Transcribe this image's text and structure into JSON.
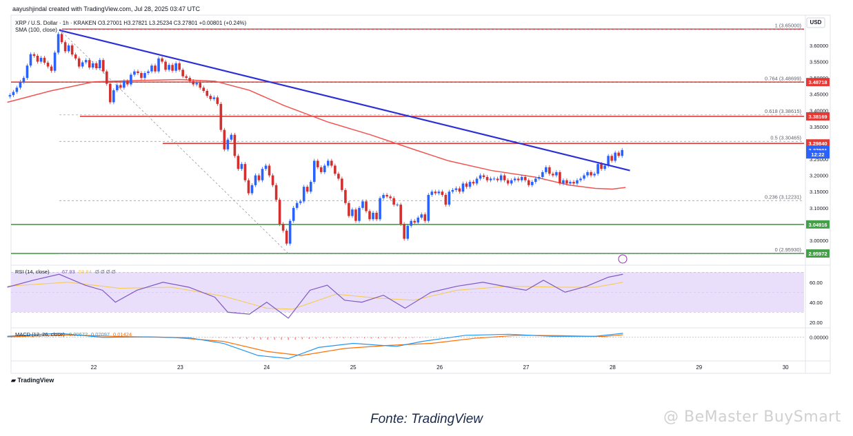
{
  "credit": "aayushjindal created with TradingView.com, Jul 28, 2025 03:47 UTC",
  "currency_button": "USD",
  "logo_text": "TradingView",
  "caption": "Fonte: TradingView",
  "watermark": "@ BeMaster BuySmart",
  "colors": {
    "up": "#2962ff",
    "down": "#d32f2f",
    "sma": "#f05350",
    "trendline": "#2a2fd6",
    "level_red": "#e53935",
    "level_green": "#43a047",
    "rsi_band": "#e9dffb",
    "macd_fast": "#2196f3",
    "macd_slow": "#ff6d00"
  },
  "chart_data": {
    "type": "candlestick",
    "symbol_line": "XRP / U.S. Dollar · 1h · KRAKEN",
    "ohlc_line": "O3.27001  H3.27821  L3.25234  C3.27801  +0.00801 (+0.24%)",
    "sma_label": "SMA (100, close)",
    "ylim": [
      2.93,
      3.655
    ],
    "x_days": [
      "22",
      "23",
      "24",
      "25",
      "26",
      "27",
      "28",
      "29",
      "30"
    ],
    "y_ticks": [
      "3.60000",
      "3.55000",
      "3.50000",
      "3.45000",
      "3.40000",
      "3.35000",
      "3.30000",
      "3.25000",
      "3.20000",
      "3.15000",
      "3.10000",
      "3.05000",
      "3.00000"
    ],
    "y_tick_values": [
      3.6,
      3.55,
      3.5,
      3.45,
      3.4,
      3.35,
      3.3,
      3.25,
      3.2,
      3.15,
      3.1,
      3.05,
      3.0
    ],
    "price_tags": [
      {
        "label": "3.48718",
        "value": 3.48718,
        "color": "red"
      },
      {
        "label": "3.38169",
        "value": 3.38169,
        "color": "red"
      },
      {
        "label": "3.29840",
        "value": 3.2984,
        "color": "red"
      },
      {
        "label": "3.27801",
        "value": 3.27801,
        "color": "blue"
      },
      {
        "label": "12:22",
        "value": 3.2645,
        "color": "blue"
      },
      {
        "label": "3.04916",
        "value": 3.04916,
        "color": "green"
      },
      {
        "label": "2.95972",
        "value": 2.95972,
        "color": "green"
      }
    ],
    "fib_levels": [
      {
        "label": "1 (3.65000)",
        "value": 3.65
      },
      {
        "label": "0.764 (3.48699)",
        "value": 3.48699
      },
      {
        "label": "0.618 (3.38615)",
        "value": 3.38615
      },
      {
        "label": "0.5 (3.30465)",
        "value": 3.30465
      },
      {
        "label": "0.236 (3.12231)",
        "value": 3.12231
      },
      {
        "label": "0 (2.95930)",
        "value": 2.9593
      }
    ],
    "horizontal_levels": [
      {
        "value": 3.65,
        "color": "red"
      },
      {
        "value": 3.48718,
        "color": "red"
      },
      {
        "value": 3.38169,
        "color": "red"
      },
      {
        "value": 3.2984,
        "color": "red"
      },
      {
        "value": 3.04916,
        "color": "green"
      },
      {
        "value": 2.95972,
        "color": "green"
      }
    ],
    "trendline": {
      "from": {
        "day": 21.6,
        "price": 3.647
      },
      "to": {
        "day": 28.2,
        "price": 3.215
      }
    },
    "fib_diagonal": {
      "from": {
        "day": 21.6,
        "price": 3.65
      },
      "to": {
        "day": 24.25,
        "price": 2.9593
      }
    },
    "candles": [
      {
        "d": 21.03,
        "c": 3.447
      },
      {
        "d": 21.07,
        "c": 3.457
      },
      {
        "d": 21.11,
        "c": 3.47
      },
      {
        "d": 21.15,
        "c": 3.488
      },
      {
        "d": 21.19,
        "c": 3.5
      },
      {
        "d": 21.23,
        "c": 3.538
      },
      {
        "d": 21.27,
        "c": 3.573
      },
      {
        "d": 21.31,
        "c": 3.568
      },
      {
        "d": 21.35,
        "c": 3.55
      },
      {
        "d": 21.39,
        "c": 3.562
      },
      {
        "d": 21.43,
        "c": 3.547
      },
      {
        "d": 21.47,
        "c": 3.535
      },
      {
        "d": 21.51,
        "c": 3.522
      },
      {
        "d": 21.55,
        "c": 3.578
      },
      {
        "d": 21.59,
        "c": 3.635
      },
      {
        "d": 21.63,
        "c": 3.61
      },
      {
        "d": 21.67,
        "c": 3.582
      },
      {
        "d": 21.71,
        "c": 3.6
      },
      {
        "d": 21.75,
        "c": 3.572
      },
      {
        "d": 21.79,
        "c": 3.56
      },
      {
        "d": 21.83,
        "c": 3.535
      },
      {
        "d": 21.87,
        "c": 3.548
      },
      {
        "d": 21.91,
        "c": 3.555
      },
      {
        "d": 21.95,
        "c": 3.532
      },
      {
        "d": 21.99,
        "c": 3.545
      },
      {
        "d": 22.03,
        "c": 3.53
      },
      {
        "d": 22.07,
        "c": 3.555
      },
      {
        "d": 22.11,
        "c": 3.52
      },
      {
        "d": 22.15,
        "c": 3.482
      },
      {
        "d": 22.19,
        "c": 3.425
      },
      {
        "d": 22.23,
        "c": 3.462
      },
      {
        "d": 22.27,
        "c": 3.478
      },
      {
        "d": 22.31,
        "c": 3.47
      },
      {
        "d": 22.35,
        "c": 3.49
      },
      {
        "d": 22.39,
        "c": 3.48
      },
      {
        "d": 22.43,
        "c": 3.51
      },
      {
        "d": 22.47,
        "c": 3.52
      },
      {
        "d": 22.51,
        "c": 3.515
      },
      {
        "d": 22.55,
        "c": 3.5
      },
      {
        "d": 22.59,
        "c": 3.515
      },
      {
        "d": 22.63,
        "c": 3.52
      },
      {
        "d": 22.67,
        "c": 3.538
      },
      {
        "d": 22.71,
        "c": 3.52
      },
      {
        "d": 22.75,
        "c": 3.56
      },
      {
        "d": 22.79,
        "c": 3.55
      },
      {
        "d": 22.83,
        "c": 3.525
      },
      {
        "d": 22.87,
        "c": 3.54
      },
      {
        "d": 22.91,
        "c": 3.522
      },
      {
        "d": 22.95,
        "c": 3.545
      },
      {
        "d": 22.99,
        "c": 3.525
      },
      {
        "d": 23.03,
        "c": 3.505
      },
      {
        "d": 23.07,
        "c": 3.5
      },
      {
        "d": 23.11,
        "c": 3.49
      },
      {
        "d": 23.15,
        "c": 3.48
      },
      {
        "d": 23.19,
        "c": 3.485
      },
      {
        "d": 23.23,
        "c": 3.47
      },
      {
        "d": 23.27,
        "c": 3.46
      },
      {
        "d": 23.31,
        "c": 3.445
      },
      {
        "d": 23.35,
        "c": 3.435
      },
      {
        "d": 23.39,
        "c": 3.44
      },
      {
        "d": 23.43,
        "c": 3.42
      },
      {
        "d": 23.47,
        "c": 3.34
      },
      {
        "d": 23.51,
        "c": 3.28
      },
      {
        "d": 23.55,
        "c": 3.31
      },
      {
        "d": 23.59,
        "c": 3.325
      },
      {
        "d": 23.63,
        "c": 3.26
      },
      {
        "d": 23.67,
        "c": 3.22
      },
      {
        "d": 23.71,
        "c": 3.235
      },
      {
        "d": 23.75,
        "c": 3.185
      },
      {
        "d": 23.79,
        "c": 3.145
      },
      {
        "d": 23.83,
        "c": 3.17
      },
      {
        "d": 23.87,
        "c": 3.2
      },
      {
        "d": 23.91,
        "c": 3.185
      },
      {
        "d": 23.95,
        "c": 3.22
      },
      {
        "d": 23.99,
        "c": 3.23
      },
      {
        "d": 24.03,
        "c": 3.2
      },
      {
        "d": 24.07,
        "c": 3.17
      },
      {
        "d": 24.11,
        "c": 3.125
      },
      {
        "d": 24.15,
        "c": 3.05
      },
      {
        "d": 24.19,
        "c": 3.03
      },
      {
        "d": 24.23,
        "c": 2.99
      },
      {
        "d": 24.27,
        "c": 3.06
      },
      {
        "d": 24.31,
        "c": 3.1
      },
      {
        "d": 24.35,
        "c": 3.115
      },
      {
        "d": 24.39,
        "c": 3.12
      },
      {
        "d": 24.43,
        "c": 3.165
      },
      {
        "d": 24.47,
        "c": 3.15
      },
      {
        "d": 24.51,
        "c": 3.18
      },
      {
        "d": 24.55,
        "c": 3.245
      },
      {
        "d": 24.59,
        "c": 3.225
      },
      {
        "d": 24.63,
        "c": 3.21
      },
      {
        "d": 24.67,
        "c": 3.23
      },
      {
        "d": 24.71,
        "c": 3.245
      },
      {
        "d": 24.75,
        "c": 3.23
      },
      {
        "d": 24.79,
        "c": 3.205
      },
      {
        "d": 24.83,
        "c": 3.19
      },
      {
        "d": 24.87,
        "c": 3.155
      },
      {
        "d": 24.91,
        "c": 3.115
      },
      {
        "d": 24.95,
        "c": 3.075
      },
      {
        "d": 24.99,
        "c": 3.095
      },
      {
        "d": 25.03,
        "c": 3.06
      },
      {
        "d": 25.07,
        "c": 3.1
      },
      {
        "d": 25.11,
        "c": 3.12
      },
      {
        "d": 25.15,
        "c": 3.09
      },
      {
        "d": 25.19,
        "c": 3.065
      },
      {
        "d": 25.23,
        "c": 3.085
      },
      {
        "d": 25.27,
        "c": 3.065
      },
      {
        "d": 25.31,
        "c": 3.13
      },
      {
        "d": 25.35,
        "c": 3.14
      },
      {
        "d": 25.39,
        "c": 3.135
      },
      {
        "d": 25.43,
        "c": 3.13
      },
      {
        "d": 25.47,
        "c": 3.11
      },
      {
        "d": 25.51,
        "c": 3.11
      },
      {
        "d": 25.55,
        "c": 3.05
      },
      {
        "d": 25.59,
        "c": 3.005
      },
      {
        "d": 25.63,
        "c": 3.045
      },
      {
        "d": 25.67,
        "c": 3.06
      },
      {
        "d": 25.71,
        "c": 3.055
      },
      {
        "d": 25.75,
        "c": 3.07
      },
      {
        "d": 25.79,
        "c": 3.08
      },
      {
        "d": 25.83,
        "c": 3.06
      },
      {
        "d": 25.87,
        "c": 3.14
      },
      {
        "d": 25.91,
        "c": 3.15
      },
      {
        "d": 25.95,
        "c": 3.145
      },
      {
        "d": 25.99,
        "c": 3.15
      },
      {
        "d": 26.03,
        "c": 3.14
      },
      {
        "d": 26.07,
        "c": 3.11
      },
      {
        "d": 26.11,
        "c": 3.15
      },
      {
        "d": 26.15,
        "c": 3.155
      },
      {
        "d": 26.19,
        "c": 3.16
      },
      {
        "d": 26.23,
        "c": 3.15
      },
      {
        "d": 26.27,
        "c": 3.175
      },
      {
        "d": 26.31,
        "c": 3.165
      },
      {
        "d": 26.35,
        "c": 3.18
      },
      {
        "d": 26.39,
        "c": 3.175
      },
      {
        "d": 26.43,
        "c": 3.19
      },
      {
        "d": 26.47,
        "c": 3.2
      },
      {
        "d": 26.51,
        "c": 3.195
      },
      {
        "d": 26.55,
        "c": 3.185
      },
      {
        "d": 26.59,
        "c": 3.19
      },
      {
        "d": 26.63,
        "c": 3.19
      },
      {
        "d": 26.67,
        "c": 3.185
      },
      {
        "d": 26.71,
        "c": 3.2
      },
      {
        "d": 26.75,
        "c": 3.185
      },
      {
        "d": 26.79,
        "c": 3.175
      },
      {
        "d": 26.83,
        "c": 3.185
      },
      {
        "d": 26.87,
        "c": 3.19
      },
      {
        "d": 26.91,
        "c": 3.185
      },
      {
        "d": 26.95,
        "c": 3.195
      },
      {
        "d": 26.99,
        "c": 3.185
      },
      {
        "d": 27.03,
        "c": 3.17
      },
      {
        "d": 27.07,
        "c": 3.18
      },
      {
        "d": 27.11,
        "c": 3.19
      },
      {
        "d": 27.15,
        "c": 3.195
      },
      {
        "d": 27.19,
        "c": 3.21
      },
      {
        "d": 27.23,
        "c": 3.225
      },
      {
        "d": 27.27,
        "c": 3.205
      },
      {
        "d": 27.31,
        "c": 3.2
      },
      {
        "d": 27.35,
        "c": 3.21
      },
      {
        "d": 27.39,
        "c": 3.175
      },
      {
        "d": 27.43,
        "c": 3.185
      },
      {
        "d": 27.47,
        "c": 3.175
      },
      {
        "d": 27.51,
        "c": 3.18
      },
      {
        "d": 27.55,
        "c": 3.175
      },
      {
        "d": 27.59,
        "c": 3.185
      },
      {
        "d": 27.63,
        "c": 3.19
      },
      {
        "d": 27.67,
        "c": 3.2
      },
      {
        "d": 27.71,
        "c": 3.21
      },
      {
        "d": 27.75,
        "c": 3.2
      },
      {
        "d": 27.79,
        "c": 3.205
      },
      {
        "d": 27.83,
        "c": 3.235
      },
      {
        "d": 27.87,
        "c": 3.22
      },
      {
        "d": 27.91,
        "c": 3.23
      },
      {
        "d": 27.95,
        "c": 3.26
      },
      {
        "d": 27.99,
        "c": 3.245
      },
      {
        "d": 28.03,
        "c": 3.27
      },
      {
        "d": 28.07,
        "c": 3.26
      },
      {
        "d": 28.11,
        "c": 3.278
      }
    ],
    "sma": [
      {
        "d": 21.0,
        "v": 3.425
      },
      {
        "d": 21.5,
        "v": 3.46
      },
      {
        "d": 22.0,
        "v": 3.488
      },
      {
        "d": 22.5,
        "v": 3.492
      },
      {
        "d": 23.0,
        "v": 3.495
      },
      {
        "d": 23.4,
        "v": 3.49
      },
      {
        "d": 23.8,
        "v": 3.462
      },
      {
        "d": 24.2,
        "v": 3.415
      },
      {
        "d": 24.7,
        "v": 3.365
      },
      {
        "d": 25.2,
        "v": 3.325
      },
      {
        "d": 25.7,
        "v": 3.28
      },
      {
        "d": 26.1,
        "v": 3.245
      },
      {
        "d": 26.6,
        "v": 3.215
      },
      {
        "d": 27.1,
        "v": 3.195
      },
      {
        "d": 27.5,
        "v": 3.17
      },
      {
        "d": 27.8,
        "v": 3.16
      },
      {
        "d": 28.0,
        "v": 3.158
      },
      {
        "d": 28.15,
        "v": 3.163
      }
    ],
    "rsi": {
      "label": "RSI (14, close)",
      "value_labels": [
        "67.93",
        "59.84",
        "Ø Ø Ø Ø"
      ],
      "ticks": [
        "60.00",
        "40.00",
        "20.00"
      ],
      "tick_values": [
        60,
        40,
        20
      ],
      "band": [
        30,
        70
      ],
      "ylim": [
        15,
        75
      ],
      "line": [
        {
          "d": 21.0,
          "v": 55
        },
        {
          "d": 21.3,
          "v": 62
        },
        {
          "d": 21.6,
          "v": 68
        },
        {
          "d": 21.9,
          "v": 57
        },
        {
          "d": 22.1,
          "v": 52
        },
        {
          "d": 22.25,
          "v": 40
        },
        {
          "d": 22.5,
          "v": 52
        },
        {
          "d": 22.8,
          "v": 60
        },
        {
          "d": 23.1,
          "v": 55
        },
        {
          "d": 23.4,
          "v": 45
        },
        {
          "d": 23.55,
          "v": 30
        },
        {
          "d": 23.8,
          "v": 28
        },
        {
          "d": 24.0,
          "v": 40
        },
        {
          "d": 24.25,
          "v": 24
        },
        {
          "d": 24.5,
          "v": 52
        },
        {
          "d": 24.7,
          "v": 57
        },
        {
          "d": 24.9,
          "v": 42
        },
        {
          "d": 25.1,
          "v": 40
        },
        {
          "d": 25.35,
          "v": 47
        },
        {
          "d": 25.6,
          "v": 34
        },
        {
          "d": 25.9,
          "v": 50
        },
        {
          "d": 26.2,
          "v": 56
        },
        {
          "d": 26.5,
          "v": 60
        },
        {
          "d": 26.8,
          "v": 55
        },
        {
          "d": 27.0,
          "v": 52
        },
        {
          "d": 27.2,
          "v": 62
        },
        {
          "d": 27.45,
          "v": 50
        },
        {
          "d": 27.7,
          "v": 56
        },
        {
          "d": 27.95,
          "v": 65
        },
        {
          "d": 28.12,
          "v": 68
        }
      ],
      "ma": [
        {
          "d": 21.0,
          "v": 56
        },
        {
          "d": 21.7,
          "v": 60
        },
        {
          "d": 22.3,
          "v": 54
        },
        {
          "d": 22.9,
          "v": 55
        },
        {
          "d": 23.5,
          "v": 46
        },
        {
          "d": 24.0,
          "v": 34
        },
        {
          "d": 24.3,
          "v": 33
        },
        {
          "d": 24.8,
          "v": 48
        },
        {
          "d": 25.3,
          "v": 44
        },
        {
          "d": 25.7,
          "v": 42
        },
        {
          "d": 26.2,
          "v": 52
        },
        {
          "d": 26.8,
          "v": 56
        },
        {
          "d": 27.4,
          "v": 55
        },
        {
          "d": 27.8,
          "v": 55
        },
        {
          "d": 28.12,
          "v": 60
        }
      ]
    },
    "macd": {
      "label": "MACD (12, 26, close)",
      "value_labels": [
        "0.00672",
        "0.02097",
        "0.01424"
      ],
      "ticks": [
        "0.00000"
      ],
      "tick_values": [
        0
      ],
      "ylim": [
        -0.11,
        0.04
      ],
      "fast": [
        {
          "d": 21.0,
          "v": 0.005
        },
        {
          "d": 21.6,
          "v": 0.02
        },
        {
          "d": 22.1,
          "v": 0.0
        },
        {
          "d": 22.6,
          "v": 0.002
        },
        {
          "d": 23.1,
          "v": -0.002
        },
        {
          "d": 23.5,
          "v": -0.03
        },
        {
          "d": 23.9,
          "v": -0.09
        },
        {
          "d": 24.25,
          "v": -0.105
        },
        {
          "d": 24.6,
          "v": -0.05
        },
        {
          "d": 25.0,
          "v": -0.03
        },
        {
          "d": 25.5,
          "v": -0.045
        },
        {
          "d": 25.8,
          "v": -0.02
        },
        {
          "d": 26.3,
          "v": 0.01
        },
        {
          "d": 26.8,
          "v": 0.015
        },
        {
          "d": 27.3,
          "v": 0.005
        },
        {
          "d": 27.8,
          "v": 0.005
        },
        {
          "d": 28.12,
          "v": 0.02
        }
      ],
      "slow": [
        {
          "d": 21.0,
          "v": 0.002
        },
        {
          "d": 21.7,
          "v": 0.012
        },
        {
          "d": 22.3,
          "v": 0.004
        },
        {
          "d": 22.9,
          "v": 0.0
        },
        {
          "d": 23.5,
          "v": -0.02
        },
        {
          "d": 24.0,
          "v": -0.07
        },
        {
          "d": 24.4,
          "v": -0.09
        },
        {
          "d": 24.9,
          "v": -0.055
        },
        {
          "d": 25.4,
          "v": -0.04
        },
        {
          "d": 25.9,
          "v": -0.03
        },
        {
          "d": 26.4,
          "v": -0.005
        },
        {
          "d": 26.9,
          "v": 0.01
        },
        {
          "d": 27.4,
          "v": 0.008
        },
        {
          "d": 27.9,
          "v": 0.004
        },
        {
          "d": 28.12,
          "v": 0.013
        }
      ]
    }
  }
}
